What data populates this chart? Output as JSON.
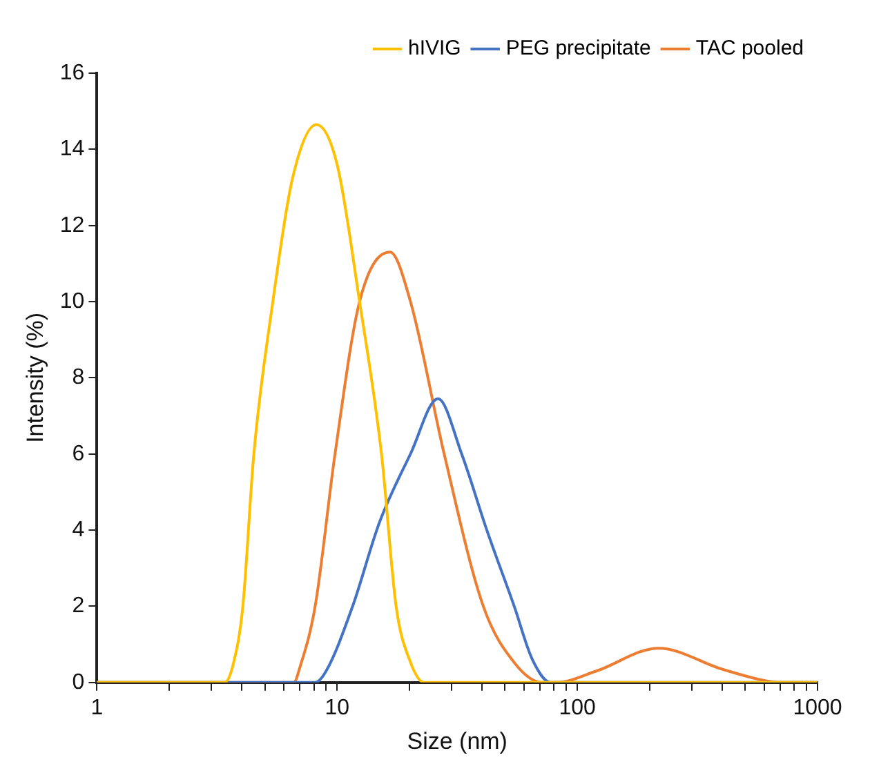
{
  "chart_data": {
    "type": "line",
    "xlabel": "Size (nm)",
    "ylabel": "Intensity (%)",
    "log": "x",
    "grid": false,
    "legend": "top right",
    "marker": "none",
    "line_style": "solid",
    "xlim": [
      1,
      1000
    ],
    "xticks": [
      1,
      {
        "value": 2,
        "label": null
      },
      {
        "value": 3,
        "label": null
      },
      {
        "value": 4,
        "label": null
      },
      {
        "value": 5,
        "label": null
      },
      {
        "value": 6,
        "label": null
      },
      {
        "value": 7,
        "label": null
      },
      {
        "value": 8,
        "label": null
      },
      {
        "value": 9,
        "label": null
      },
      10,
      {
        "value": 20,
        "label": null
      },
      {
        "value": 30,
        "label": null
      },
      {
        "value": 40,
        "label": null
      },
      {
        "value": 50,
        "label": null
      },
      {
        "value": 60,
        "label": null
      },
      {
        "value": 70,
        "label": null
      },
      {
        "value": 80,
        "label": null
      },
      {
        "value": 90,
        "label": null
      },
      100,
      {
        "value": 200,
        "label": null
      },
      {
        "value": 300,
        "label": null
      },
      {
        "value": 400,
        "label": null
      },
      {
        "value": 500,
        "label": null
      },
      {
        "value": 600,
        "label": null
      },
      {
        "value": 700,
        "label": null
      },
      {
        "value": 800,
        "label": null
      },
      {
        "value": 900,
        "label": null
      },
      1000
    ],
    "ylim": [
      0,
      16
    ],
    "yticks": [
      0,
      2,
      4,
      6,
      8,
      10,
      12,
      14,
      16
    ],
    "series": [
      {
        "name": "hIVIG",
        "color": "#ffc000",
        "x": [
          1,
          3.4,
          3.7,
          4.05,
          4.5,
          5.4,
          6.5,
          8.2,
          10,
          12.4,
          15.3,
          17.6,
          20,
          23,
          1000
        ],
        "values": [
          0,
          0,
          0.5,
          2,
          6,
          10,
          13.2,
          14.65,
          13.6,
          10,
          6,
          2,
          0.6,
          0,
          0
        ]
      },
      {
        "name": "PEG precipitate",
        "color": "#4472c4",
        "x": [
          1,
          8.1,
          9,
          11.6,
          15,
          20.2,
          26.3,
          33,
          42,
          54.6,
          65,
          77.5,
          1000
        ],
        "values": [
          0,
          0,
          0.3,
          2,
          4.2,
          6,
          7.45,
          6,
          4,
          2,
          0.6,
          0,
          0
        ]
      },
      {
        "name": "TAC pooled",
        "color": "#ed7d31",
        "x": [
          1,
          6.6,
          7,
          8.1,
          9.8,
          12.4,
          16.6,
          20.2,
          27.9,
          40.6,
          55,
          71,
          82,
          120,
          218,
          400,
          600,
          695,
          1000
        ],
        "values": [
          0,
          0,
          0.4,
          2,
          6,
          10,
          11.3,
          10,
          6,
          2,
          0.5,
          0,
          0,
          0.3,
          0.9,
          0.35,
          0.05,
          0,
          0
        ]
      }
    ]
  }
}
